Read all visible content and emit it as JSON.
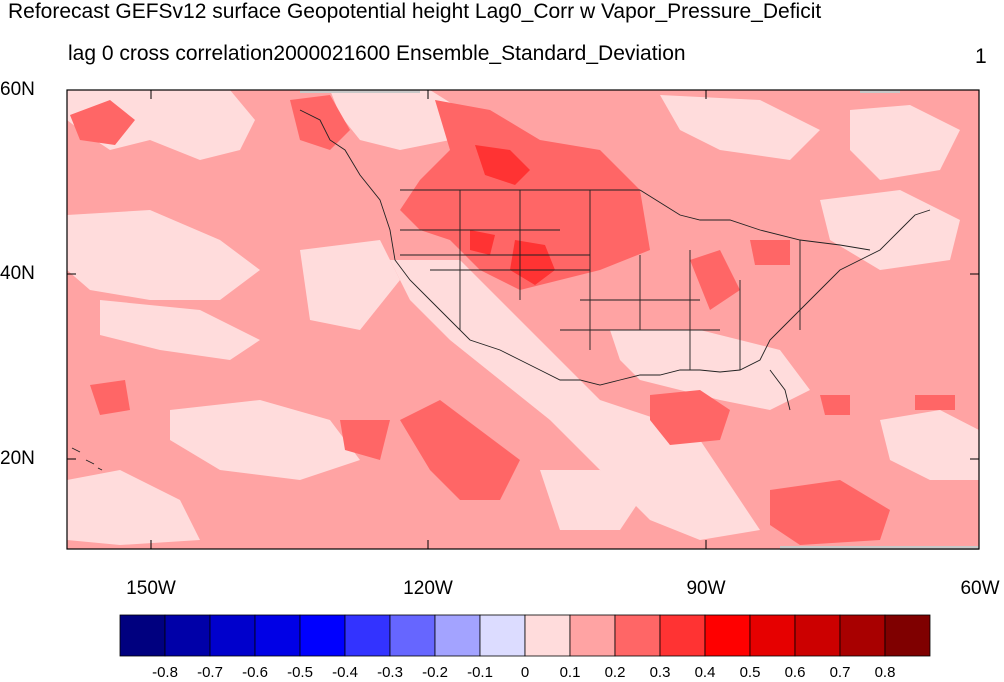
{
  "header": {
    "title": "Reforecast GEFSv12 surface Geopotential height Lag0_Corr w Vapor_Pressure_Deficit",
    "subtitle_left": "lag 0 cross correlation2000021600 Ensemble_Standard_Deviation",
    "subtitle_right": "1"
  },
  "axes": {
    "lat_labels": [
      "60N",
      "40N",
      "20N"
    ],
    "lon_labels": [
      "150W",
      "120W",
      "90W",
      "60W"
    ]
  },
  "colorbar": {
    "colors": [
      "#00007f",
      "#0000a8",
      "#0000cc",
      "#0000e6",
      "#0000ff",
      "#3333ff",
      "#6666ff",
      "#a3a3ff",
      "#dcdcff",
      "#ffdcdc",
      "#ffa3a3",
      "#ff6666",
      "#ff3333",
      "#ff0000",
      "#e60000",
      "#cc0000",
      "#a80000",
      "#7f0000"
    ],
    "labels": [
      "-0.8",
      "-0.7",
      "-0.6",
      "-0.5",
      "-0.4",
      "-0.3",
      "-0.2",
      "-0.1",
      "0",
      "0.1",
      "0.2",
      "0.3",
      "0.4",
      "0.5",
      "0.6",
      "0.7",
      "0.8"
    ]
  },
  "map": {
    "background_color": "#ffa3a3",
    "light_color": "#ffdcdc",
    "medium_color": "#ff6666",
    "missing_color": "#c8c8c8"
  }
}
